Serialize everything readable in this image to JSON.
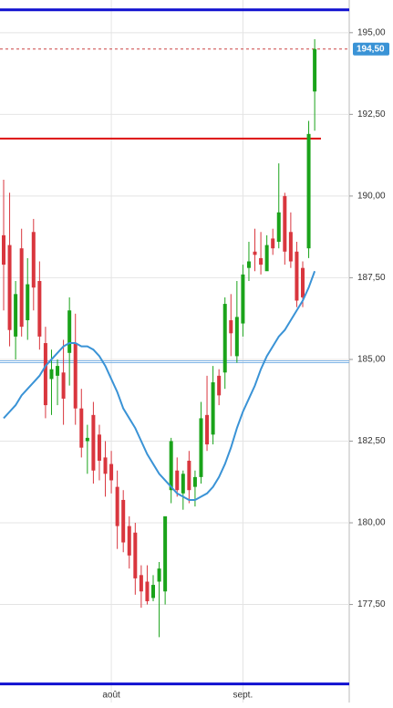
{
  "chart_data": {
    "type": "candlestick",
    "categories": [
      null,
      null,
      null,
      null,
      null,
      null,
      null,
      null,
      null,
      null,
      null,
      null,
      null,
      null,
      null,
      null,
      null,
      null,
      "août",
      null,
      null,
      null,
      null,
      null,
      null,
      null,
      null,
      null,
      null,
      null,
      null,
      null,
      null,
      null,
      null,
      null,
      null,
      null,
      null,
      null,
      "sept.",
      null,
      null,
      null,
      null,
      null,
      null,
      null,
      null,
      null,
      null,
      null,
      null
    ],
    "open": [
      188.8,
      188.5,
      185.7,
      188.4,
      186.2,
      188.9,
      187.4,
      185.5,
      184.4,
      184.5,
      184.6,
      185.2,
      185.5,
      183.5,
      182.5,
      183.3,
      182.7,
      182.0,
      181.8,
      181.1,
      180.7,
      179.9,
      179.7,
      178.4,
      178.2,
      177.7,
      178.2,
      177.9,
      181.0,
      181.6,
      180.9,
      181.9,
      181.1,
      181.4,
      183.3,
      182.7,
      184.5,
      184.6,
      186.2,
      185.1,
      186.1,
      187.8,
      188.3,
      188.1,
      187.7,
      188.7,
      188.6,
      190.0,
      188.9,
      188.3,
      187.8,
      188.4,
      193.2
    ],
    "high": [
      190.5,
      190.1,
      187.4,
      189.0,
      188.1,
      189.3,
      188.0,
      186.0,
      185.3,
      185.0,
      185.6,
      186.9,
      186.4,
      184.1,
      183.0,
      183.7,
      183.0,
      182.5,
      182.2,
      181.6,
      181.0,
      180.2,
      180.0,
      178.7,
      178.7,
      178.4,
      178.8,
      180.1,
      182.6,
      182.0,
      181.6,
      182.2,
      181.6,
      183.7,
      184.5,
      184.8,
      184.7,
      186.9,
      187.0,
      187.4,
      187.9,
      188.6,
      189.0,
      188.9,
      188.8,
      189.0,
      191.0,
      190.1,
      189.5,
      188.6,
      188.0,
      192.3,
      194.8
    ],
    "low": [
      186.5,
      185.4,
      185.0,
      185.7,
      185.6,
      186.5,
      185.3,
      183.2,
      183.3,
      183.6,
      183.0,
      184.2,
      183.0,
      182.0,
      181.5,
      181.2,
      181.3,
      180.8,
      180.9,
      179.2,
      179.1,
      178.6,
      177.8,
      177.4,
      177.5,
      177.6,
      176.5,
      177.5,
      180.6,
      180.8,
      180.4,
      180.6,
      180.5,
      181.2,
      182.2,
      182.4,
      183.6,
      184.1,
      185.1,
      184.9,
      185.7,
      187.4,
      187.7,
      187.6,
      187.8,
      188.2,
      188.4,
      187.9,
      187.8,
      186.6,
      186.6,
      188.1,
      192.0
    ],
    "close": [
      187.9,
      185.9,
      187.0,
      186.0,
      187.3,
      187.2,
      185.7,
      183.6,
      184.7,
      184.8,
      183.8,
      186.5,
      183.5,
      182.3,
      182.6,
      181.6,
      181.9,
      181.5,
      181.3,
      179.9,
      179.4,
      179.0,
      178.3,
      177.9,
      177.6,
      178.1,
      178.6,
      180.2,
      182.5,
      181.0,
      181.5,
      181.0,
      181.4,
      183.2,
      182.4,
      184.3,
      183.9,
      186.7,
      185.8,
      186.3,
      187.6,
      188.0,
      188.2,
      187.9,
      188.5,
      188.4,
      189.5,
      188.3,
      188.0,
      186.8,
      186.9,
      191.9,
      194.5
    ],
    "up_color": "#1aa31a",
    "down_color": "#d9363e",
    "moving_average": {
      "color": "#3a93d6",
      "values": [
        183.2,
        183.4,
        183.6,
        183.9,
        184.1,
        184.3,
        184.5,
        184.8,
        185.0,
        185.2,
        185.4,
        185.5,
        185.5,
        185.4,
        185.4,
        185.3,
        185.1,
        184.8,
        184.4,
        184.0,
        183.5,
        183.2,
        182.9,
        182.5,
        182.1,
        181.8,
        181.5,
        181.3,
        181.1,
        180.9,
        180.8,
        180.7,
        180.7,
        180.8,
        180.9,
        181.1,
        181.4,
        181.8,
        182.3,
        182.9,
        183.4,
        183.8,
        184.2,
        184.7,
        185.1,
        185.4,
        185.7,
        185.9,
        186.2,
        186.5,
        186.8,
        187.2,
        187.7
      ]
    },
    "hlines": [
      {
        "value": 195.7,
        "color": "#1010d0"
      },
      {
        "value": 175.07,
        "color": "#1010d0"
      },
      {
        "value": 191.76,
        "color": "#dd1111"
      },
      {
        "value": 184.93,
        "color": "#7fb4e6"
      }
    ],
    "last_price": {
      "value": 194.5,
      "label": "194,50",
      "color": "#3a93d6"
    },
    "ylim": [
      174.5,
      196
    ],
    "yticks": [
      {
        "value": 177.5,
        "label": "177,50"
      },
      {
        "value": 180,
        "label": "180,00"
      },
      {
        "value": 182.5,
        "label": "182,50"
      },
      {
        "value": 185,
        "label": "185,00"
      },
      {
        "value": 187.5,
        "label": "187,50"
      },
      {
        "value": 190,
        "label": "190,00"
      },
      {
        "value": 192.5,
        "label": "192,50"
      },
      {
        "value": 195,
        "label": "195,00"
      }
    ],
    "grid": true
  }
}
